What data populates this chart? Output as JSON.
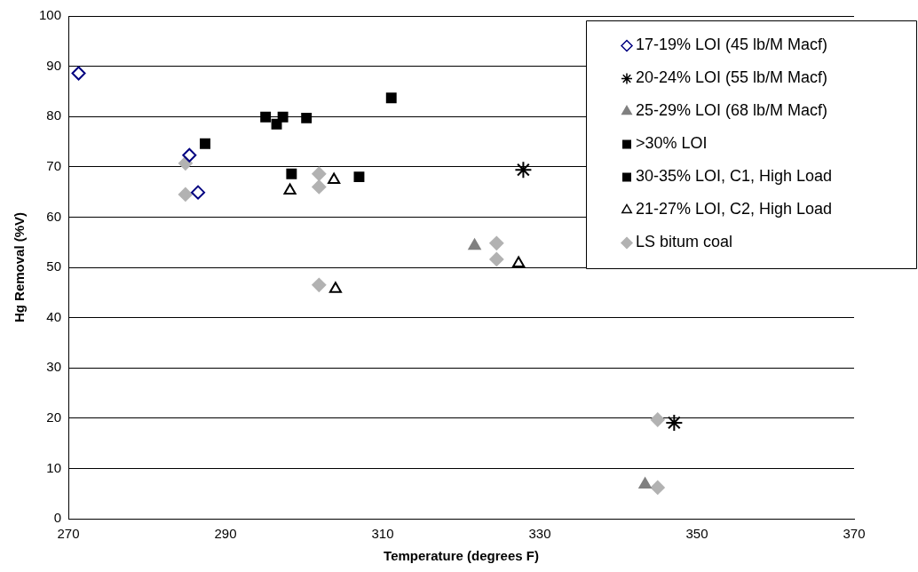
{
  "chart_data": {
    "type": "scatter",
    "xlabel": "Temperature (degrees F)",
    "ylabel": "Hg Removal (%V)",
    "xlim": [
      270,
      370
    ],
    "xticks": [
      270,
      290,
      310,
      330,
      350,
      370
    ],
    "ylim": [
      0,
      100
    ],
    "yticks": [
      0,
      10,
      20,
      30,
      40,
      50,
      60,
      70,
      80,
      90,
      100
    ],
    "grid": "y",
    "legend": "top right",
    "series": [
      {
        "name": "17-19% LOI (45 lb/M Macf)",
        "color": "#000080",
        "marker": "diamond",
        "x": [
          271.3,
          285.4,
          286.5
        ],
        "values": [
          88.6,
          72.3,
          64.9
        ]
      },
      {
        "name": "20-24% LOI (55 lb/M Macf)",
        "color": "#000000",
        "marker": "cross",
        "x": [
          327.9,
          347.1
        ],
        "values": [
          69.4,
          19.1
        ]
      },
      {
        "name": "25-29% LOI (68 lb/M Macf)",
        "color": "#808080",
        "marker": "triangle",
        "x": [
          321.7,
          343.4
        ],
        "values": [
          54.3,
          6.8
        ]
      },
      {
        "name": ">30% LOI",
        "color": "#000000",
        "marker": "square",
        "x": [
          296.5,
          297.3,
          300.3,
          311.1,
          307.0
        ],
        "values": [
          78.5,
          79.9,
          79.7,
          83.7,
          68.0
        ]
      },
      {
        "name": "30-35% LOI, C1, High Load",
        "color": "#000000",
        "marker": "square",
        "x": [
          287.4,
          295.1,
          298.4
        ],
        "values": [
          74.6,
          79.9,
          68.6
        ]
      },
      {
        "name": "21-27% LOI, C2, High Load",
        "color": "#000000",
        "marker": "triangle",
        "x": [
          298.2,
          303.8,
          304.0,
          327.3
        ],
        "values": [
          65.3,
          67.4,
          45.7,
          50.8
        ]
      },
      {
        "name": "LS bitum coal",
        "color": "#b2b2b2",
        "marker": "diamond",
        "x": [
          284.9,
          284.9,
          301.9,
          301.9,
          301.9,
          324.5,
          324.5,
          345.0,
          345.0
        ],
        "values": [
          70.7,
          64.5,
          68.6,
          66.0,
          46.5,
          54.8,
          51.6,
          19.7,
          6.2
        ]
      }
    ]
  }
}
